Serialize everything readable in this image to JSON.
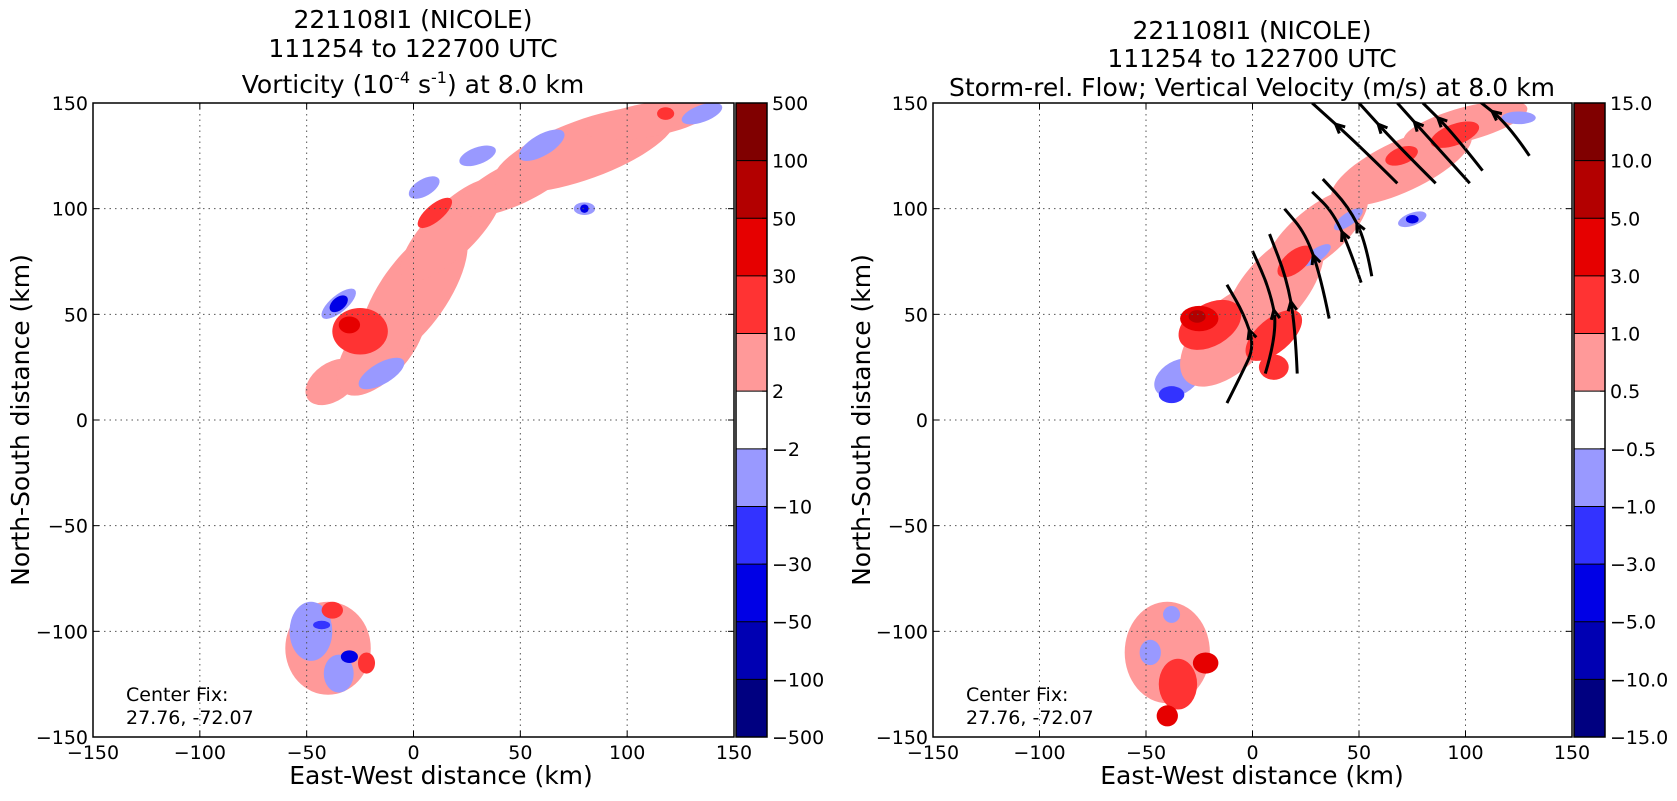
{
  "chart_data": [
    {
      "type": "heatmap",
      "title_lines": [
        "221108I1 (NICOLE)",
        "111254 to 122700 UTC"
      ],
      "title_var": {
        "base": "Vorticity (10",
        "sup1": "-4",
        "mid": " s",
        "sup2": "-1",
        "tail": ") at 8.0 km"
      },
      "xlabel": "East-West distance (km)",
      "ylabel": "North-South distance (km)",
      "xlim": [
        -150,
        150
      ],
      "ylim": [
        -150,
        150
      ],
      "xticks": [
        -150,
        -100,
        -50,
        0,
        50,
        100,
        150
      ],
      "yticks": [
        -150,
        -100,
        -50,
        0,
        50,
        100,
        150
      ],
      "grid": true,
      "center_fix": {
        "label": "Center Fix:",
        "coords": "27.76, -72.07"
      },
      "colorbar": {
        "levels": [
          "-500",
          "-100",
          "-50",
          "-30",
          "-10",
          "-2",
          "2",
          "10",
          "30",
          "50",
          "100",
          "500"
        ],
        "colors": [
          "#000080",
          "#0000b3",
          "#0000e6",
          "#3333ff",
          "#9999ff",
          "#ffffff",
          "#ff9999",
          "#ff3333",
          "#e60000",
          "#b30000",
          "#800000"
        ]
      },
      "features": [
        {
          "x": -38,
          "y": 18,
          "rx": 14,
          "ry": 9,
          "level": 6,
          "rot": -35
        },
        {
          "x": -15,
          "y": 35,
          "rx": 28,
          "ry": 14,
          "level": 6,
          "rot": -50
        },
        {
          "x": 0,
          "y": 60,
          "rx": 38,
          "ry": 16,
          "level": 6,
          "rot": -55
        },
        {
          "x": 18,
          "y": 90,
          "rx": 32,
          "ry": 12,
          "level": 6,
          "rot": -45
        },
        {
          "x": 48,
          "y": 112,
          "rx": 30,
          "ry": 10,
          "level": 6,
          "rot": -25
        },
        {
          "x": 80,
          "y": 128,
          "rx": 45,
          "ry": 14,
          "level": 6,
          "rot": -20
        },
        {
          "x": 110,
          "y": 142,
          "rx": 30,
          "ry": 8,
          "level": 6,
          "rot": -10
        },
        {
          "x": -25,
          "y": 42,
          "rx": 13,
          "ry": 11,
          "level": 7,
          "rot": 0
        },
        {
          "x": -30,
          "y": 45,
          "rx": 5,
          "ry": 4,
          "level": 8,
          "rot": 0
        },
        {
          "x": 10,
          "y": 98,
          "rx": 10,
          "ry": 4,
          "level": 7,
          "rot": -40
        },
        {
          "x": 118,
          "y": 145,
          "rx": 4,
          "ry": 3,
          "level": 7,
          "rot": 0
        },
        {
          "x": -15,
          "y": 22,
          "rx": 12,
          "ry": 5,
          "level": 4,
          "rot": -30
        },
        {
          "x": -35,
          "y": 55,
          "rx": 10,
          "ry": 4,
          "level": 4,
          "rot": -40
        },
        {
          "x": -35,
          "y": 55,
          "rx": 5,
          "ry": 3,
          "level": 2,
          "rot": -40
        },
        {
          "x": 60,
          "y": 130,
          "rx": 12,
          "ry": 5,
          "level": 4,
          "rot": -30
        },
        {
          "x": 30,
          "y": 125,
          "rx": 9,
          "ry": 4,
          "level": 4,
          "rot": -20
        },
        {
          "x": 135,
          "y": 145,
          "rx": 10,
          "ry": 4,
          "level": 4,
          "rot": -20
        },
        {
          "x": 80,
          "y": 100,
          "rx": 5,
          "ry": 3,
          "level": 4,
          "rot": 0
        },
        {
          "x": 80,
          "y": 100,
          "rx": 2,
          "ry": 2,
          "level": 2,
          "rot": 0
        },
        {
          "x": 5,
          "y": 110,
          "rx": 8,
          "ry": 4,
          "level": 4,
          "rot": -30
        },
        {
          "x": -40,
          "y": -108,
          "rx": 20,
          "ry": 22,
          "level": 6,
          "rot": 0
        },
        {
          "x": -48,
          "y": -100,
          "rx": 10,
          "ry": 14,
          "level": 4,
          "rot": 0
        },
        {
          "x": -35,
          "y": -120,
          "rx": 7,
          "ry": 9,
          "level": 4,
          "rot": 0
        },
        {
          "x": -43,
          "y": -97,
          "rx": 4,
          "ry": 2,
          "level": 3,
          "rot": 0
        },
        {
          "x": -22,
          "y": -115,
          "rx": 4,
          "ry": 5,
          "level": 7,
          "rot": 0
        },
        {
          "x": -38,
          "y": -90,
          "rx": 5,
          "ry": 4,
          "level": 7,
          "rot": 0
        },
        {
          "x": -30,
          "y": -112,
          "rx": 4,
          "ry": 3,
          "level": 2,
          "rot": 0
        }
      ]
    },
    {
      "type": "heatmap",
      "title_lines": [
        "221108I1 (NICOLE)",
        "111254 to 122700 UTC",
        "Storm-rel. Flow; Vertical Velocity (m/s) at 8.0 km"
      ],
      "xlabel": "East-West distance (km)",
      "ylabel": "North-South distance (km)",
      "xlim": [
        -150,
        150
      ],
      "ylim": [
        -150,
        150
      ],
      "xticks": [
        -150,
        -100,
        -50,
        0,
        50,
        100,
        150
      ],
      "yticks": [
        -150,
        -100,
        -50,
        0,
        50,
        100,
        150
      ],
      "grid": true,
      "center_fix": {
        "label": "Center Fix:",
        "coords": "27.76, -72.07"
      },
      "colorbar": {
        "levels": [
          "-15.0",
          "-10.0",
          "-5.0",
          "-3.0",
          "-1.0",
          "-0.5",
          "0.5",
          "1.0",
          "3.0",
          "5.0",
          "10.0",
          "15.0"
        ],
        "colors": [
          "#000080",
          "#0000b3",
          "#0000e6",
          "#3333ff",
          "#9999ff",
          "#ffffff",
          "#ff9999",
          "#ff3333",
          "#e60000",
          "#b30000",
          "#800000"
        ]
      },
      "features": [
        {
          "x": -35,
          "y": 20,
          "rx": 12,
          "ry": 8,
          "level": 4,
          "rot": -30
        },
        {
          "x": -38,
          "y": 12,
          "rx": 6,
          "ry": 4,
          "level": 3,
          "rot": 0
        },
        {
          "x": -10,
          "y": 40,
          "rx": 30,
          "ry": 16,
          "level": 6,
          "rot": -45
        },
        {
          "x": 10,
          "y": 62,
          "rx": 32,
          "ry": 15,
          "level": 6,
          "rot": -50
        },
        {
          "x": 30,
          "y": 88,
          "rx": 30,
          "ry": 12,
          "level": 6,
          "rot": -40
        },
        {
          "x": 70,
          "y": 120,
          "rx": 36,
          "ry": 12,
          "level": 6,
          "rot": -25
        },
        {
          "x": 100,
          "y": 140,
          "rx": 30,
          "ry": 8,
          "level": 6,
          "rot": -15
        },
        {
          "x": -20,
          "y": 45,
          "rx": 16,
          "ry": 10,
          "level": 7,
          "rot": -30
        },
        {
          "x": -25,
          "y": 48,
          "rx": 9,
          "ry": 6,
          "level": 8,
          "rot": 0
        },
        {
          "x": -26,
          "y": 49,
          "rx": 4,
          "ry": 3,
          "level": 9,
          "rot": 0
        },
        {
          "x": 10,
          "y": 40,
          "rx": 16,
          "ry": 8,
          "level": 7,
          "rot": -40
        },
        {
          "x": 10,
          "y": 25,
          "rx": 7,
          "ry": 6,
          "level": 7,
          "rot": 0
        },
        {
          "x": 20,
          "y": 75,
          "rx": 10,
          "ry": 5,
          "level": 7,
          "rot": -40
        },
        {
          "x": 95,
          "y": 135,
          "rx": 12,
          "ry": 5,
          "level": 7,
          "rot": -20
        },
        {
          "x": 70,
          "y": 125,
          "rx": 8,
          "ry": 4,
          "level": 7,
          "rot": -20
        },
        {
          "x": 30,
          "y": 78,
          "rx": 8,
          "ry": 3,
          "level": 4,
          "rot": -35
        },
        {
          "x": 45,
          "y": 95,
          "rx": 8,
          "ry": 3,
          "level": 4,
          "rot": -35
        },
        {
          "x": 75,
          "y": 95,
          "rx": 7,
          "ry": 3,
          "level": 4,
          "rot": -20
        },
        {
          "x": 75,
          "y": 95,
          "rx": 3,
          "ry": 2,
          "level": 2,
          "rot": 0
        },
        {
          "x": 125,
          "y": 143,
          "rx": 8,
          "ry": 3,
          "level": 4,
          "rot": 0
        },
        {
          "x": -40,
          "y": -110,
          "rx": 20,
          "ry": 24,
          "level": 6,
          "rot": 0
        },
        {
          "x": -35,
          "y": -125,
          "rx": 9,
          "ry": 12,
          "level": 7,
          "rot": 0
        },
        {
          "x": -40,
          "y": -140,
          "rx": 5,
          "ry": 5,
          "level": 8,
          "rot": 0
        },
        {
          "x": -22,
          "y": -115,
          "rx": 6,
          "ry": 5,
          "level": 8,
          "rot": 0
        },
        {
          "x": -38,
          "y": -92,
          "rx": 4,
          "ry": 4,
          "level": 4,
          "rot": 0
        },
        {
          "x": -48,
          "y": -110,
          "rx": 5,
          "ry": 6,
          "level": 4,
          "rot": 0
        }
      ],
      "flow_curves": [
        [
          [
            -12,
            8
          ],
          [
            -5,
            22
          ],
          [
            1,
            35
          ],
          [
            -4,
            50
          ],
          [
            -12,
            64
          ]
        ],
        [
          [
            6,
            22
          ],
          [
            12,
            42
          ],
          [
            8,
            62
          ],
          [
            0,
            80
          ]
        ],
        [
          [
            21,
            22
          ],
          [
            20,
            45
          ],
          [
            16,
            67
          ],
          [
            8,
            88
          ]
        ],
        [
          [
            36,
            48
          ],
          [
            32,
            68
          ],
          [
            25,
            88
          ],
          [
            15,
            100
          ]
        ],
        [
          [
            51,
            65
          ],
          [
            46,
            80
          ],
          [
            38,
            98
          ],
          [
            28,
            108
          ]
        ],
        [
          [
            56,
            68
          ],
          [
            53,
            85
          ],
          [
            45,
            101
          ],
          [
            33,
            114
          ]
        ],
        [
          [
            68,
            112
          ],
          [
            50,
            130
          ],
          [
            28,
            150
          ]
        ],
        [
          [
            86,
            112
          ],
          [
            68,
            130
          ],
          [
            50,
            150
          ]
        ],
        [
          [
            102,
            112
          ],
          [
            84,
            132
          ],
          [
            68,
            150
          ]
        ],
        [
          [
            108,
            118
          ],
          [
            94,
            136
          ],
          [
            80,
            150
          ]
        ],
        [
          [
            130,
            125
          ],
          [
            120,
            140
          ],
          [
            105,
            152
          ]
        ]
      ]
    }
  ]
}
